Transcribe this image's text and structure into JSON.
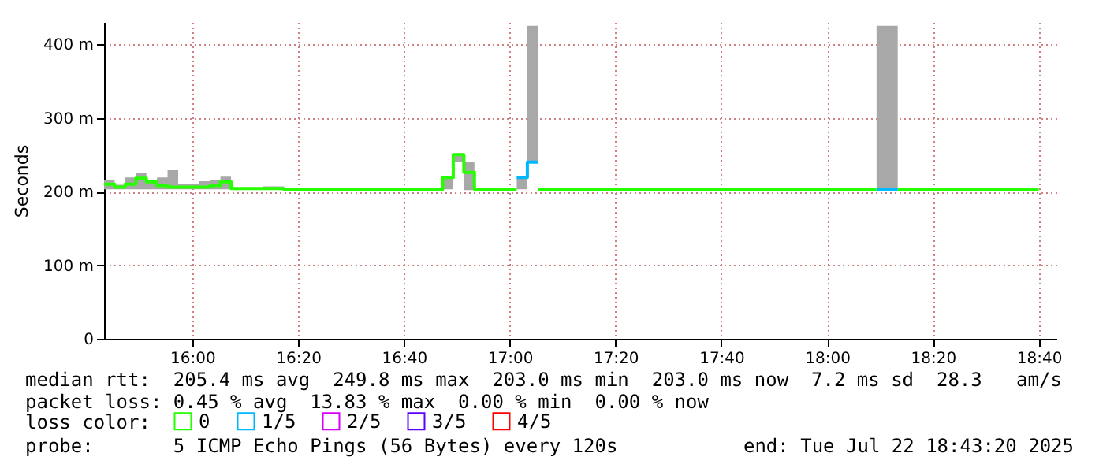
{
  "chart_data": {
    "type": "step",
    "ylabel": "Seconds",
    "legend_title": "loss color:",
    "xlim": [
      15.7222,
      18.7222
    ],
    "xticks": [
      {
        "value": 16,
        "label": "16:00"
      },
      {
        "value": 16.3333,
        "label": "16:20"
      },
      {
        "value": 16.6667,
        "label": "16:40"
      },
      {
        "value": 17,
        "label": "17:00"
      },
      {
        "value": 17.3333,
        "label": "17:20"
      },
      {
        "value": 17.6667,
        "label": "17:40"
      },
      {
        "value": 18,
        "label": "18:00"
      },
      {
        "value": 18.3333,
        "label": "18:20"
      },
      {
        "value": 18.6667,
        "label": "18:40"
      }
    ],
    "ylim": [
      0,
      430
    ],
    "yticks": [
      0,
      {
        "value": 100,
        "label": "100 m"
      },
      {
        "value": 200,
        "label": "200 m"
      },
      {
        "value": 300,
        "label": "300 m"
      },
      {
        "value": 400,
        "label": "400 m"
      }
    ],
    "grid": true,
    "legend": "bottom",
    "series": [
      {
        "name": "0",
        "color": "#26ff00",
        "x": [
          15.7222,
          15.7556,
          15.7889,
          15.8222,
          15.8556,
          15.8889,
          15.9222,
          15.9556,
          15.9889,
          16.0222,
          16.0556,
          16.0889,
          16.1222,
          16.2222,
          16.2889,
          16.3556,
          16.7889,
          16.8222,
          16.8556,
          16.8889,
          17.0222,
          17.0556,
          17.0889,
          18.1556,
          18.2222,
          18.6667
        ],
        "values": [
          210,
          206,
          210,
          218,
          213,
          208,
          206,
          206,
          206,
          206,
          208,
          213,
          204,
          204,
          203,
          203,
          219,
          250,
          226,
          203,
          null,
          null,
          203,
          null,
          203,
          203
        ],
        "lower": [
          203,
          203,
          203,
          203,
          203,
          203,
          203,
          203,
          203,
          203,
          203,
          203,
          203,
          203,
          203,
          203,
          203,
          240,
          202,
          203,
          203,
          240,
          203,
          203,
          203,
          203
        ],
        "upper": [
          216,
          209,
          219,
          225,
          216,
          219,
          229,
          210,
          210,
          214,
          216,
          220,
          205,
          207,
          204,
          203,
          219,
          252,
          240,
          203,
          219,
          425,
          203,
          425,
          203,
          203
        ]
      },
      {
        "name": "1/5",
        "color": "#00b8ff",
        "x": [
          17.0222,
          17.0556,
          17.0889
        ],
        "values": [
          219,
          240,
          240
        ]
      },
      {
        "color": "#00b8ff",
        "x": [
          18.1556,
          18.1889,
          18.2222
        ],
        "values": [
          203,
          203,
          203
        ]
      },
      {
        "name": "2/5",
        "color": "#d600ff"
      },
      {
        "name": "3/5",
        "color": "#5e00ff"
      },
      {
        "name": "4/5",
        "color": "#ff0000"
      }
    ],
    "annotations": [
      "median rtt:  205.4 ms avg  249.8 ms max  203.0 ms min  203.0 ms now  7.2 ms sd  28.3   am/s",
      "packet loss: 0.45 % avg  13.83 % max  0.00 % min  0.00 % now",
      "probe:       5 ICMP Echo Pings (56 Bytes) every 120s",
      "end: Tue Jul 22 18:43:20 2025"
    ]
  }
}
